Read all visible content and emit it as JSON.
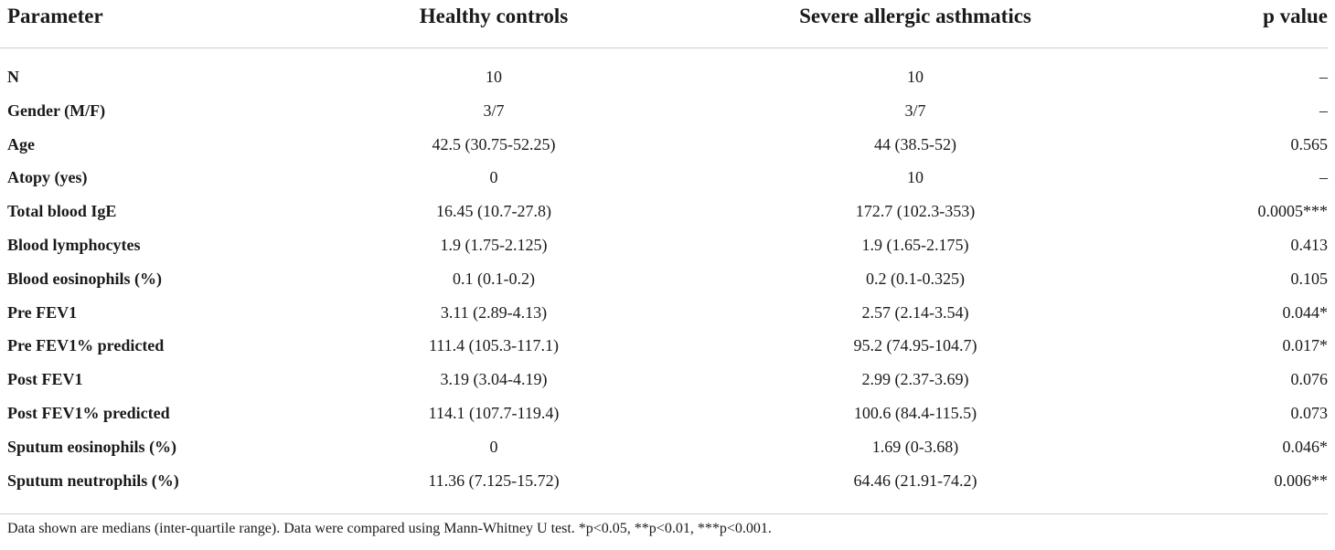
{
  "table": {
    "headers": {
      "parameter": "Parameter",
      "healthy": "Healthy controls",
      "severe": "Severe allergic asthmatics",
      "p": "p value"
    },
    "rows": [
      {
        "parameter": "N",
        "healthy": "10",
        "severe": "10",
        "p": "–"
      },
      {
        "parameter": "Gender (M/F)",
        "healthy": "3/7",
        "severe": "3/7",
        "p": "–"
      },
      {
        "parameter": "Age",
        "healthy": "42.5 (30.75-52.25)",
        "severe": "44 (38.5-52)",
        "p": "0.565"
      },
      {
        "parameter": "Atopy (yes)",
        "healthy": "0",
        "severe": "10",
        "p": "–"
      },
      {
        "parameter": "Total blood IgE",
        "healthy": "16.45 (10.7-27.8)",
        "severe": "172.7 (102.3-353)",
        "p": "0.0005***"
      },
      {
        "parameter": "Blood lymphocytes",
        "healthy": "1.9 (1.75-2.125)",
        "severe": "1.9 (1.65-2.175)",
        "p": "0.413"
      },
      {
        "parameter": "Blood eosinophils (%)",
        "healthy": "0.1 (0.1-0.2)",
        "severe": "0.2 (0.1-0.325)",
        "p": "0.105"
      },
      {
        "parameter": "Pre FEV1",
        "healthy": "3.11 (2.89-4.13)",
        "severe": "2.57 (2.14-3.54)",
        "p": "0.044*"
      },
      {
        "parameter": "Pre FEV1% predicted",
        "healthy": "111.4 (105.3-117.1)",
        "severe": "95.2 (74.95-104.7)",
        "p": "0.017*"
      },
      {
        "parameter": "Post FEV1",
        "healthy": "3.19 (3.04-4.19)",
        "severe": "2.99 (2.37-3.69)",
        "p": "0.076"
      },
      {
        "parameter": "Post FEV1% predicted",
        "healthy": "114.1 (107.7-119.4)",
        "severe": "100.6 (84.4-115.5)",
        "p": "0.073"
      },
      {
        "parameter": "Sputum eosinophils (%)",
        "healthy": "0",
        "severe": "1.69 (0-3.68)",
        "p": "0.046*"
      },
      {
        "parameter": "Sputum neutrophils (%)",
        "healthy": "11.36 (7.125-15.72)",
        "severe": "64.46 (21.91-74.2)",
        "p": "0.006**"
      }
    ],
    "footnote": "Data shown are medians (inter-quartile range). Data were compared using Mann-Whitney U test. *p<0.05, **p<0.01, ***p<0.001."
  }
}
